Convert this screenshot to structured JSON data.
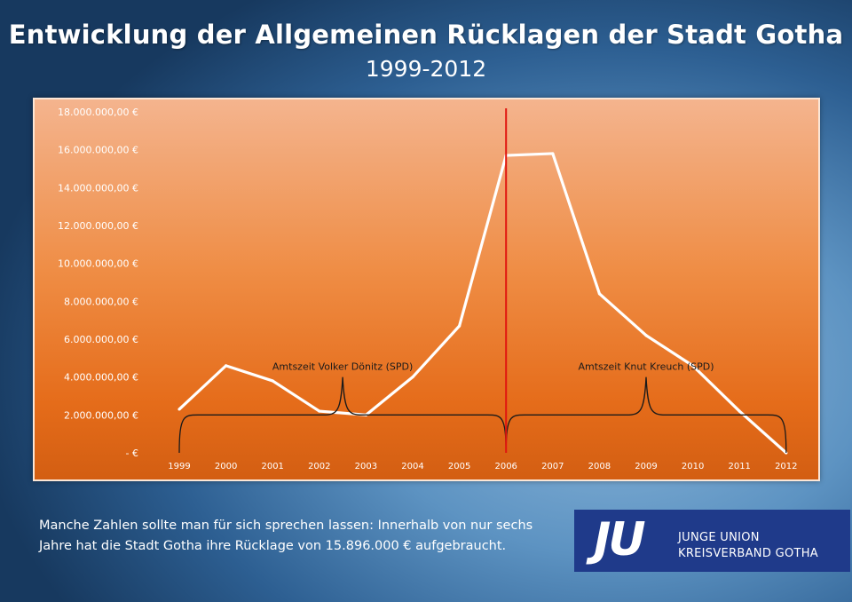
{
  "header": {
    "title": "Entwicklung der Allgemeinen Rücklagen der Stadt Gotha",
    "subtitle": "1999-2012"
  },
  "chart_data": {
    "type": "line",
    "title": "Entwicklung der Allgemeinen Rücklagen der Stadt Gotha",
    "subtitle": "1999-2012",
    "xlabel": "",
    "ylabel": "",
    "x": [
      "1999",
      "2000",
      "2001",
      "2002",
      "2003",
      "2004",
      "2005",
      "2006",
      "2007",
      "2008",
      "2009",
      "2010",
      "2011",
      "2012"
    ],
    "series": [
      {
        "values": [
          2300000,
          4600000,
          3800000,
          2200000,
          2000000,
          4000000,
          6700000,
          15700000,
          15800000,
          8400000,
          6200000,
          4600000,
          2200000,
          0
        ]
      }
    ],
    "ylim": [
      0,
      18000000
    ],
    "y_ticks": [
      0,
      2000000,
      4000000,
      6000000,
      8000000,
      10000000,
      12000000,
      14000000,
      16000000,
      18000000
    ],
    "y_tick_labels": [
      "-   €",
      "2.000.000,00 €",
      "4.000.000,00 €",
      "6.000.000,00 €",
      "8.000.000,00 €",
      "10.000.000,00 €",
      "12.000.000,00 €",
      "14.000.000,00 €",
      "16.000.000,00 €",
      "18.000.000,00 €"
    ],
    "grid": false,
    "line_color": "#ffffff",
    "marker_line": {
      "x": "2006",
      "color": "#e0150f"
    },
    "annotations": [
      {
        "text": "Amtszeit Volker Dönitz (SPD)",
        "from": "1999",
        "to": "2006"
      },
      {
        "text": "Amtszeit Knut Kreuch (SPD)",
        "from": "2006",
        "to": "2012"
      }
    ]
  },
  "footer": {
    "line1": "Manche Zahlen sollte man für sich sprechen lassen: Innerhalb von nur sechs",
    "line2": "Jahre hat die Stadt Gotha ihre Rücklage von 15.896.000 € aufgebraucht."
  },
  "logo": {
    "mark": "JU",
    "line1": "JUNGE UNION",
    "line2": "KREISVERBAND GOTHA",
    "color": "#1f3a8a"
  }
}
